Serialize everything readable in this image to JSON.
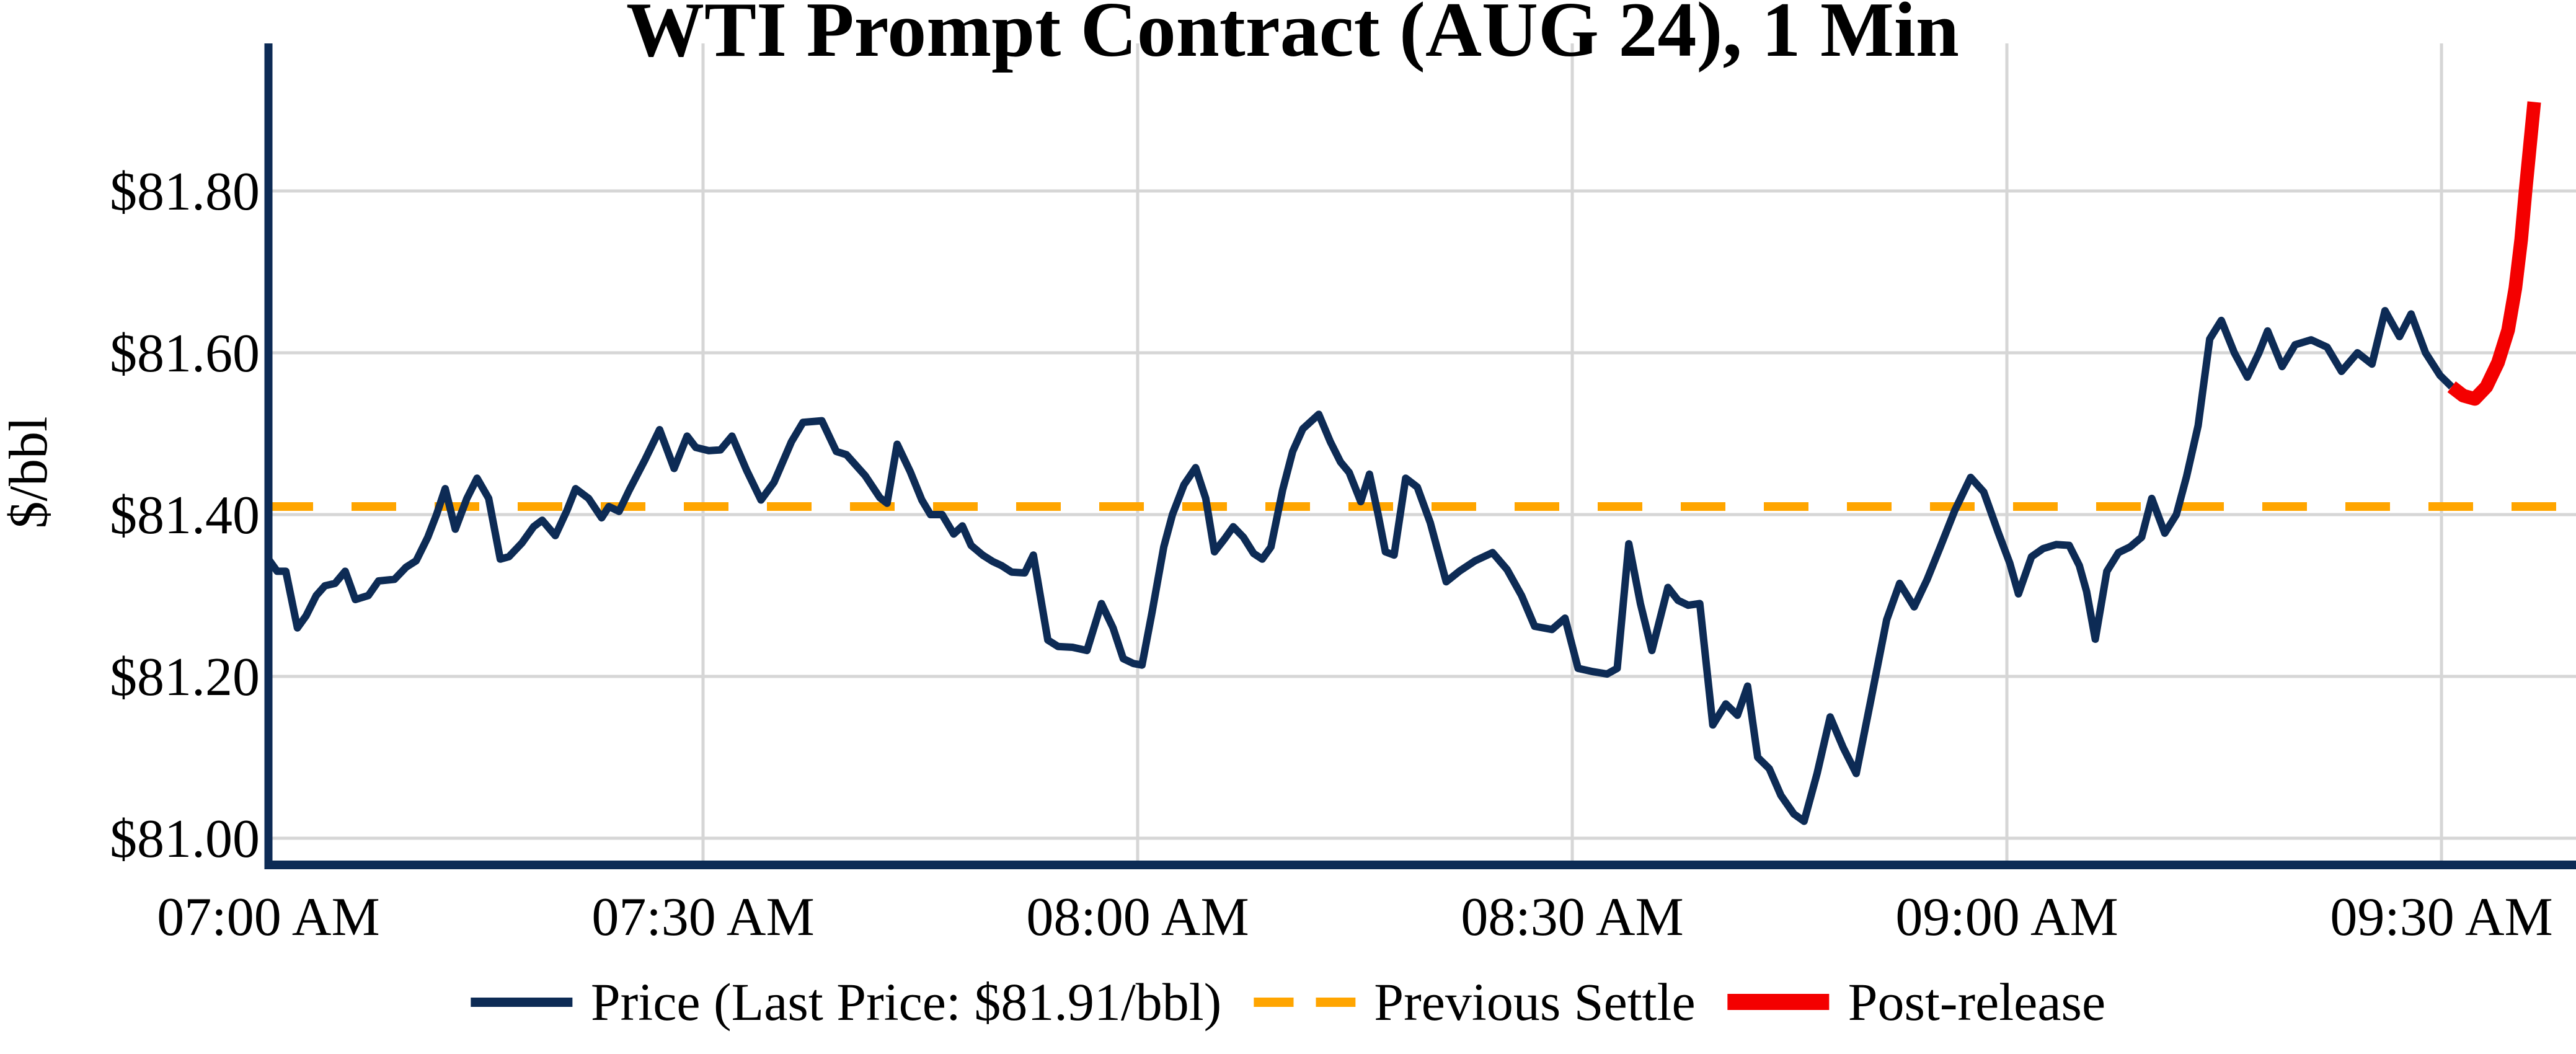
{
  "chart_data": {
    "type": "line",
    "title": "WTI Prompt Contract (AUG 24), 1 Min",
    "ylabel": "$/bbl",
    "xlabel": "",
    "x_axis": {
      "tick_labels": [
        "07:00 AM",
        "07:30 AM",
        "08:00 AM",
        "08:30 AM",
        "09:00 AM",
        "09:30 AM"
      ],
      "tick_minutes": [
        0,
        30,
        60,
        90,
        120,
        150
      ],
      "xlim_minutes": [
        0,
        159.3
      ]
    },
    "y_axis": {
      "tick_labels": [
        "$81.00",
        "$81.20",
        "$81.40",
        "$81.60",
        "$81.80"
      ],
      "tick_values": [
        81.0,
        81.2,
        81.4,
        81.6,
        81.8
      ],
      "ylim": [
        80.967,
        81.98
      ]
    },
    "grid": true,
    "legend_position": "bottom-center",
    "previous_settle": 81.41,
    "last_price": 81.91,
    "colors": {
      "price_navy": "#0d2b55",
      "post_red": "#f40000",
      "settle_orange": "#ffa500",
      "grid_gray": "#d6d6d6",
      "text": "#000000",
      "background": "#ffffff"
    },
    "series": [
      {
        "name": "Price (Last Price: $81.91/bbl)",
        "style": "solid",
        "color": "#0d2b55",
        "x_minutes": [
          0,
          0.6,
          1.2,
          2,
          2.6,
          3.3,
          3.9,
          4.6,
          5.3,
          6,
          6.9,
          7.6,
          8.7,
          9.5,
          10.2,
          11,
          11.6,
          12.2,
          12.9,
          13.7,
          14.4,
          15.2,
          16,
          16.6,
          17.5,
          18.3,
          18.9,
          19.8,
          20.6,
          21.2,
          22.1,
          23,
          23.5,
          24.2,
          24.9,
          26,
          27,
          28,
          28.9,
          29.5,
          30.4,
          31.2,
          32,
          33,
          34,
          34.9,
          36.1,
          36.9,
          38.2,
          39.2,
          39.9,
          41.2,
          42.2,
          42.7,
          43.4,
          44.3,
          45.1,
          45.7,
          46.5,
          47.3,
          47.9,
          48.5,
          49.3,
          50,
          50.6,
          51.3,
          52.2,
          52.8,
          53.8,
          54.5,
          55.5,
          56.5,
          57.5,
          58.3,
          59,
          59.7,
          60.3,
          61,
          61.8,
          62.4,
          63.2,
          64,
          64.7,
          65.3,
          66,
          66.6,
          67.3,
          68,
          68.6,
          69.2,
          70,
          70.7,
          71.4,
          72.5,
          73.3,
          74,
          74.6,
          75.4,
          76,
          76.6,
          77.1,
          77.7,
          78.5,
          79.3,
          80.2,
          81.3,
          82.2,
          83.3,
          84.5,
          85.5,
          86.5,
          87.4,
          88.6,
          89.5,
          90.4,
          91.4,
          92.4,
          93.1,
          93.9,
          94.7,
          95.5,
          96.6,
          97.3,
          98,
          98.8,
          99.7,
          100.6,
          101.4,
          102.1,
          102.8,
          103.6,
          104.4,
          105.3,
          106,
          106.9,
          107.8,
          108.7,
          109.6,
          110.6,
          111.7,
          112.6,
          113.6,
          114.5,
          115.4,
          116.4,
          117.5,
          118.4,
          119.4,
          120.2,
          120.8,
          121.7,
          122.5,
          123.4,
          124.3,
          125,
          125.5,
          126.1,
          126.9,
          127.7,
          128.5,
          129.3,
          130,
          130.9,
          131.7,
          132.4,
          133.2,
          134,
          134.8,
          135.7,
          136.6,
          137.4,
          138,
          139,
          139.9,
          141,
          142.1,
          143.1,
          144.2,
          145.2,
          146.1,
          147.1,
          147.9,
          148.9,
          149.9,
          150.7
        ],
        "values": [
          81.345,
          81.33,
          81.33,
          81.26,
          81.275,
          81.3,
          81.312,
          81.315,
          81.33,
          81.295,
          81.3,
          81.318,
          81.32,
          81.335,
          81.343,
          81.372,
          81.4,
          81.432,
          81.382,
          81.42,
          81.445,
          81.42,
          81.345,
          81.348,
          81.365,
          81.385,
          81.393,
          81.374,
          81.405,
          81.432,
          81.42,
          81.396,
          81.41,
          81.404,
          81.43,
          81.468,
          81.505,
          81.457,
          81.497,
          81.483,
          81.479,
          81.48,
          81.497,
          81.455,
          81.418,
          81.44,
          81.49,
          81.514,
          81.516,
          81.478,
          81.474,
          81.448,
          81.421,
          81.414,
          81.487,
          81.453,
          81.418,
          81.4,
          81.4,
          81.376,
          81.386,
          81.362,
          81.35,
          81.342,
          81.337,
          81.329,
          81.328,
          81.35,
          81.245,
          81.237,
          81.236,
          81.232,
          81.29,
          81.26,
          81.222,
          81.216,
          81.214,
          81.28,
          81.36,
          81.4,
          81.437,
          81.458,
          81.42,
          81.354,
          81.37,
          81.385,
          81.372,
          81.352,
          81.345,
          81.36,
          81.43,
          81.478,
          81.506,
          81.524,
          81.49,
          81.465,
          81.452,
          81.416,
          81.45,
          81.4,
          81.354,
          81.35,
          81.445,
          81.434,
          81.39,
          81.317,
          81.33,
          81.343,
          81.353,
          81.332,
          81.3,
          81.262,
          81.258,
          81.272,
          81.21,
          81.206,
          81.203,
          81.21,
          81.364,
          81.29,
          81.232,
          81.31,
          81.294,
          81.288,
          81.29,
          81.14,
          81.166,
          81.152,
          81.188,
          81.1,
          81.086,
          81.053,
          81.03,
          81.021,
          81.08,
          81.15,
          81.112,
          81.08,
          81.17,
          81.27,
          81.315,
          81.286,
          81.32,
          81.36,
          81.405,
          81.446,
          81.428,
          81.378,
          81.34,
          81.302,
          81.348,
          81.358,
          81.363,
          81.362,
          81.337,
          81.305,
          81.246,
          81.33,
          81.353,
          81.36,
          81.372,
          81.42,
          81.377,
          81.4,
          81.447,
          81.51,
          81.617,
          81.64,
          81.6,
          81.57,
          81.6,
          81.627,
          81.583,
          81.61,
          81.616,
          81.607,
          81.577,
          81.6,
          81.586,
          81.652,
          81.62,
          81.648,
          81.6,
          81.572,
          81.558
        ]
      },
      {
        "name": "Previous Settle",
        "style": "dashed",
        "color": "#ffa500",
        "value": 81.41
      },
      {
        "name": "Post-release",
        "style": "solid-thick",
        "color": "#f40000",
        "x_minutes": [
          150.7,
          151.5,
          152.3,
          153.1,
          153.9,
          154.6,
          155.1,
          155.5,
          155.8,
          156.1,
          156.4
        ],
        "values": [
          81.558,
          81.547,
          81.543,
          81.558,
          81.588,
          81.628,
          81.68,
          81.74,
          81.8,
          81.855,
          81.91
        ]
      }
    ]
  }
}
